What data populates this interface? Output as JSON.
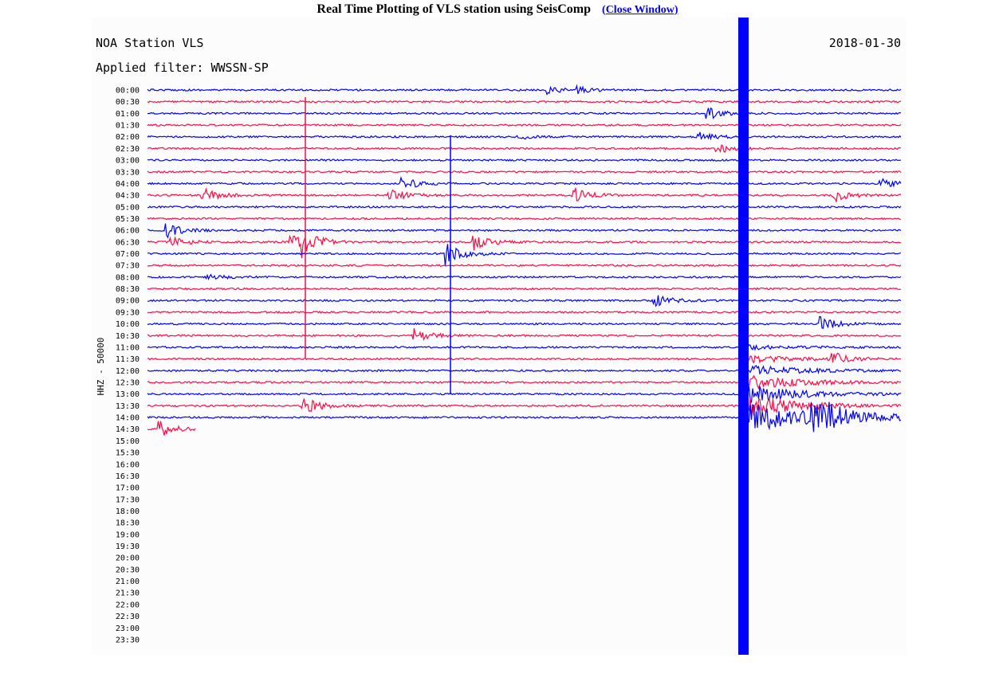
{
  "header": {
    "title": "Real Time Plotting of VLS station using SeisComp",
    "link_open": "(",
    "link": "Close Window)"
  },
  "plot": {
    "station": "NOA Station VLS",
    "date": "2018-01-30",
    "filter": "Applied filter: WWSSN-SP",
    "channel": "HHZ - 50000",
    "trace_colors": [
      "#0000ff",
      "#ff0a46"
    ],
    "time_labels": [
      "00:00",
      "00:30",
      "01:00",
      "01:30",
      "02:00",
      "02:30",
      "03:00",
      "03:30",
      "04:00",
      "04:30",
      "05:00",
      "05:30",
      "06:00",
      "06:30",
      "07:00",
      "07:30",
      "08:00",
      "08:30",
      "09:00",
      "09:30",
      "10:00",
      "10:30",
      "11:00",
      "11:30",
      "12:00",
      "12:30",
      "13:00",
      "13:30",
      "14:00",
      "14:30",
      "15:00",
      "15:30",
      "16:00",
      "16:30",
      "17:00",
      "17:30",
      "18:00",
      "18:30",
      "19:00",
      "19:30",
      "20:00",
      "20:30",
      "21:00",
      "21:30",
      "22:00",
      "22:30",
      "23:00",
      "23:30"
    ]
  }
}
